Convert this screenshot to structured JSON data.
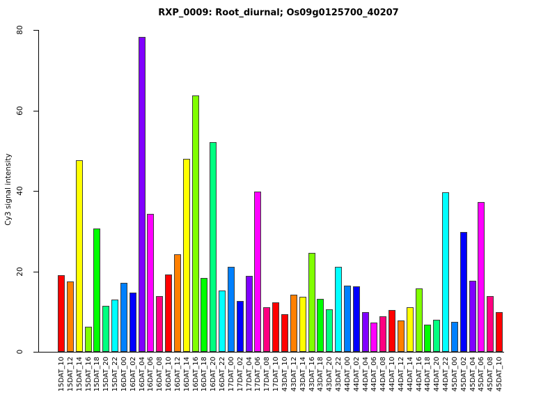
{
  "chart_data": {
    "type": "bar",
    "title": "RXP_0009: Root_diurnal; Os09g0125700_40207",
    "ylabel": "Cy3 signal intensity",
    "xlabel": "",
    "ylim": [
      0,
      80
    ],
    "yticks": [
      0,
      20,
      40,
      60,
      80
    ],
    "grid": false,
    "legend": false,
    "background_color": "#FFFFFF",
    "bar_border_color": "#3A3A3A",
    "palette_rainbow12": [
      "#FF0000",
      "#FF8000",
      "#FFFF00",
      "#80FF00",
      "#00FF00",
      "#00FF80",
      "#00FFFF",
      "#0080FF",
      "#0000FF",
      "#8000FF",
      "#FF00FF",
      "#FF0080"
    ],
    "categories": [
      "15DAT_10",
      "15DAT_12",
      "15DAT_14",
      "15DAT_16",
      "15DAT_18",
      "15DAT_20",
      "15DAT_22",
      "16DAT_00",
      "16DAT_02",
      "16DAT_04",
      "16DAT_06",
      "16DAT_08",
      "16DAT_10",
      "16DAT_12",
      "16DAT_14",
      "16DAT_16",
      "16DAT_18",
      "16DAT_20",
      "16DAT_22",
      "17DAT_00",
      "17DAT_02",
      "17DAT_04",
      "17DAT_06",
      "17DAT_08",
      "17DAT_10",
      "43DAT_10",
      "43DAT_12",
      "43DAT_14",
      "43DAT_16",
      "43DAT_18",
      "43DAT_20",
      "43DAT_22",
      "44DAT_00",
      "44DAT_02",
      "44DAT_04",
      "44DAT_06",
      "44DAT_08",
      "44DAT_10",
      "44DAT_12",
      "44DAT_14",
      "44DAT_16",
      "44DAT_18",
      "44DAT_20",
      "44DAT_22",
      "45DAT_00",
      "45DAT_02",
      "45DAT_04",
      "45DAT_06",
      "45DAT_08",
      "45DAT_10"
    ],
    "values": [
      19.0,
      17.5,
      47.6,
      6.2,
      30.7,
      11.5,
      13.0,
      17.2,
      14.7,
      78.3,
      34.3,
      13.9,
      19.2,
      24.3,
      47.9,
      63.7,
      18.4,
      52.1,
      15.2,
      21.2,
      12.7,
      18.8,
      39.8,
      11.0,
      12.3,
      9.4,
      14.2,
      13.6,
      24.6,
      13.1,
      10.6,
      21.2,
      16.4,
      16.2,
      9.8,
      7.3,
      8.8,
      10.4,
      7.8,
      11.1,
      15.7,
      6.8,
      8.0,
      39.7,
      7.5,
      29.7,
      17.6,
      37.3,
      13.9,
      9.9
    ],
    "bar_colors": [
      "#FF0000",
      "#FF8000",
      "#FFFF00",
      "#80FF00",
      "#00FF00",
      "#00FF80",
      "#00FFFF",
      "#0080FF",
      "#0000FF",
      "#8000FF",
      "#FF00FF",
      "#FF0080",
      "#FF0000",
      "#FF8000",
      "#FFFF00",
      "#80FF00",
      "#00FF00",
      "#00FF80",
      "#00FFFF",
      "#0080FF",
      "#0000FF",
      "#8000FF",
      "#FF00FF",
      "#FF0080",
      "#FF0000",
      "#FF0000",
      "#FF8000",
      "#FFFF00",
      "#80FF00",
      "#00FF00",
      "#00FF80",
      "#00FFFF",
      "#0080FF",
      "#0000FF",
      "#8000FF",
      "#FF00FF",
      "#FF0080",
      "#FF0000",
      "#FF8000",
      "#FFFF00",
      "#80FF00",
      "#00FF00",
      "#00FF80",
      "#00FFFF",
      "#0080FF",
      "#0000FF",
      "#8000FF",
      "#FF00FF",
      "#FF0080",
      "#FF0000"
    ]
  }
}
